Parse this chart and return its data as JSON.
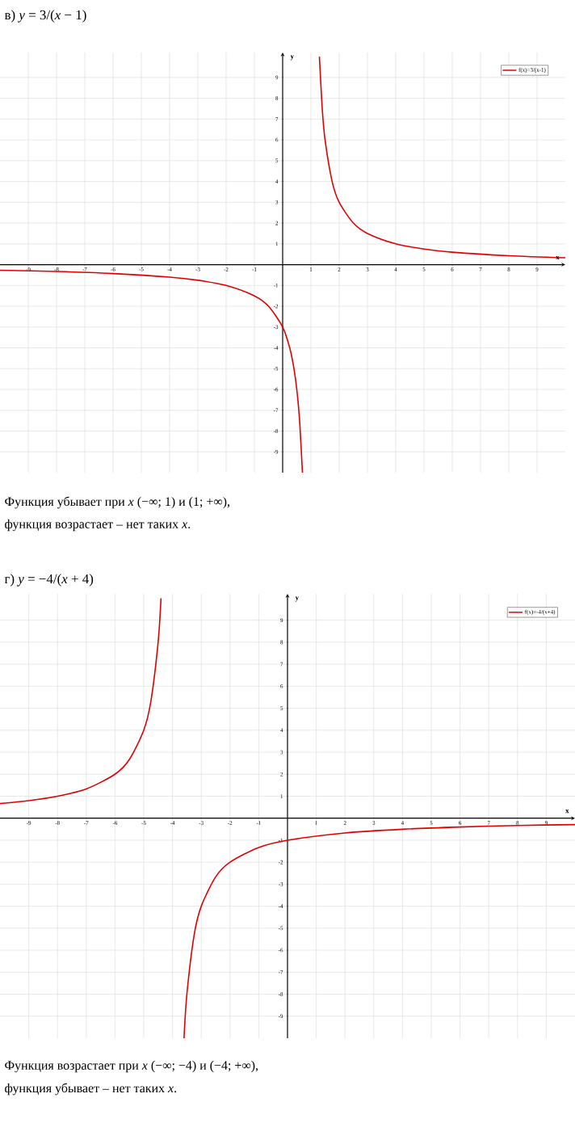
{
  "chart_data": [
    {
      "type": "line",
      "title": "в) *y* = 3/(*x* − 1)",
      "xlabel": "x",
      "ylabel": "y",
      "xlim": [
        -10,
        10
      ],
      "ylim": [
        -10,
        10.2
      ],
      "xticks": [
        -9,
        -8,
        -7,
        -6,
        -5,
        -4,
        -3,
        -2,
        -1,
        1,
        2,
        3,
        4,
        5,
        6,
        7,
        8,
        9
      ],
      "yticks": [
        -9,
        -8,
        -7,
        -6,
        -5,
        -4,
        -3,
        -2,
        -1,
        1,
        2,
        3,
        4,
        5,
        6,
        7,
        8,
        9
      ],
      "grid": true,
      "legend": "top right",
      "series": [
        {
          "name": "f(x)=3/(x-1)",
          "color": "#e00000",
          "x": [
            -10,
            -8,
            -6,
            -4,
            -3,
            -2,
            -1,
            -0.5,
            0,
            0.25,
            0.4,
            0.5,
            0.6,
            0.7
          ],
          "values": [
            -0.27,
            -0.33,
            -0.43,
            -0.6,
            -0.75,
            -1,
            -1.5,
            -2,
            -3,
            -4,
            -5,
            -6,
            -7.5,
            -10
          ]
        },
        {
          "color": "#e00000",
          "x": [
            1.3,
            1.4,
            1.5,
            1.75,
            2,
            2.5,
            3,
            4,
            5,
            6,
            8,
            10
          ],
          "values": [
            10,
            7.5,
            6,
            4,
            3,
            2,
            1.5,
            1,
            0.75,
            0.6,
            0.43,
            0.33
          ]
        }
      ],
      "annotations": [
        "Функция убывает при *x* (−∞; 1) и (1; +∞),",
        "функция возрастает – нет таких *x*."
      ]
    },
    {
      "type": "line",
      "title": "г) *y* = −4/(*x* + 4)",
      "xlabel": "x",
      "ylabel": "y",
      "xlim": [
        -10,
        10
      ],
      "ylim": [
        -10,
        10.2
      ],
      "xticks": [
        -9,
        -8,
        -7,
        -6,
        -5,
        -4,
        -3,
        -2,
        -1,
        1,
        2,
        3,
        4,
        5,
        6,
        7,
        8,
        9
      ],
      "yticks": [
        -9,
        -8,
        -7,
        -6,
        -5,
        -4,
        -3,
        -2,
        -1,
        1,
        2,
        3,
        4,
        5,
        6,
        7,
        8,
        9
      ],
      "grid": true,
      "legend": "top right",
      "series": [
        {
          "name": "f(x)=-4/(x+4)",
          "color": "#e00000",
          "x": [
            -10,
            -9,
            -8,
            -7,
            -6,
            -5.5,
            -5,
            -4.75,
            -4.5,
            -4.4
          ],
          "values": [
            0.67,
            0.8,
            1,
            1.33,
            2,
            2.67,
            4,
            5.33,
            8,
            10
          ]
        },
        {
          "color": "#e00000",
          "x": [
            -3.6,
            -3.5,
            -3.25,
            -3,
            -2.5,
            -2,
            -1,
            0,
            2,
            4,
            6,
            8,
            10
          ],
          "values": [
            -10,
            -8,
            -5.33,
            -4,
            -2.67,
            -2,
            -1.33,
            -1,
            -0.67,
            -0.5,
            -0.4,
            -0.33,
            -0.29
          ]
        }
      ],
      "annotations": [
        "Функция возрастает при *x* (−∞; −4) и (−4; +∞),",
        "функция убывает – нет таких *x*."
      ]
    }
  ]
}
